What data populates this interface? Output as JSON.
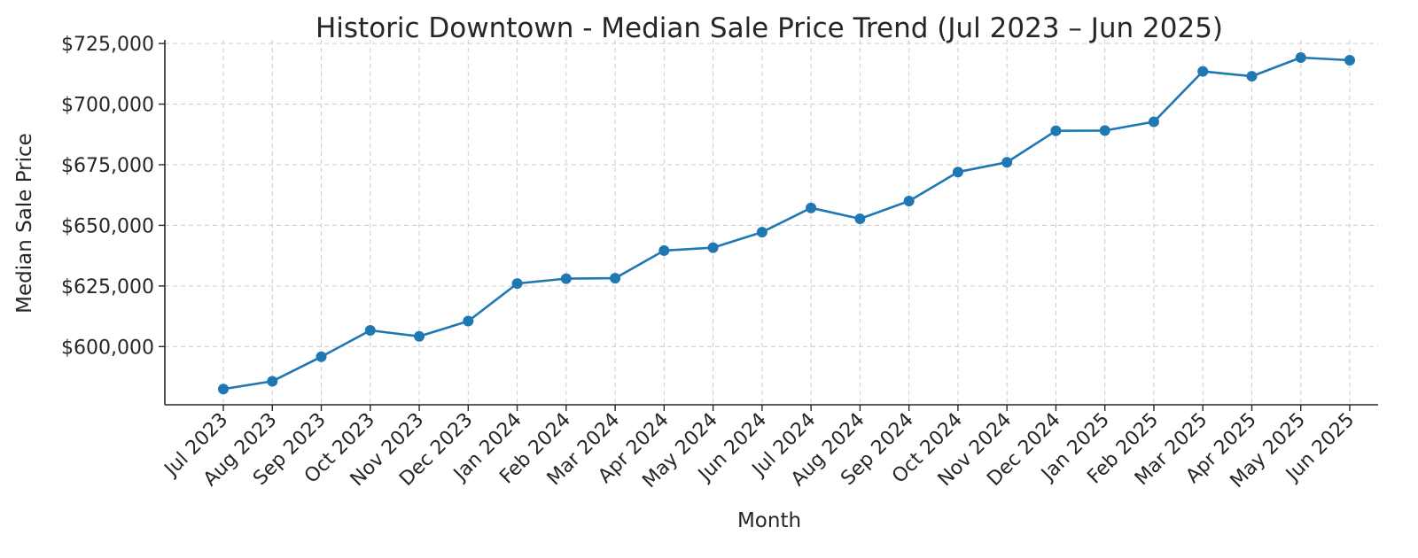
{
  "chart_data": {
    "type": "line",
    "title": "Historic Downtown - Median Sale Price Trend (Jul 2023 – Jun 2025)",
    "xlabel": "Month",
    "ylabel": "Median Sale Price",
    "categories": [
      "Jul 2023",
      "Aug 2023",
      "Sep 2023",
      "Oct 2023",
      "Nov 2023",
      "Dec 2023",
      "Jan 2024",
      "Feb 2024",
      "Mar 2024",
      "Apr 2024",
      "May 2024",
      "Jun 2024",
      "Jul 2024",
      "Aug 2024",
      "Sep 2024",
      "Oct 2024",
      "Nov 2024",
      "Dec 2024",
      "Jan 2025",
      "Feb 2025",
      "Mar 2025",
      "Apr 2025",
      "May 2025",
      "Jun 2025"
    ],
    "series": [
      {
        "values": [
          582500,
          585700,
          595800,
          606700,
          604200,
          610500,
          626000,
          628000,
          628200,
          639600,
          640800,
          647200,
          657200,
          652700,
          660000,
          672000,
          676000,
          689000,
          689100,
          692700,
          713500,
          711500,
          719200,
          718100
        ]
      }
    ],
    "yticks": [
      600000,
      625000,
      650000,
      675000,
      700000,
      725000
    ],
    "ytick_labels": [
      "$600,000",
      "$625,000",
      "$650,000",
      "$675,000",
      "$700,000",
      "$725,000"
    ],
    "ylim": [
      576000,
      726500
    ],
    "grid": true,
    "legend": "none",
    "line_color": "#1f77b4"
  }
}
